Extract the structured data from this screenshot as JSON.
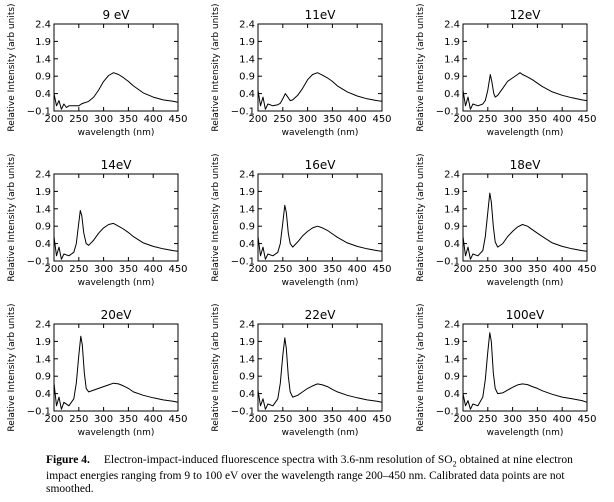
{
  "chart_data": [
    {
      "type": "line",
      "title": "9 eV",
      "xlabel": "wavelength (nm)",
      "ylabel": "Relative Intensity (arb units)",
      "xlim": [
        200,
        450
      ],
      "ylim": [
        -0.1,
        2.4
      ],
      "xticks": [
        "200",
        "250",
        "300",
        "350",
        "400",
        "450"
      ],
      "yticks": [
        "−0.1",
        "0.4",
        "0.9",
        "1.4",
        "1.9",
        "2.4"
      ],
      "series": [
        {
          "x": [
            200,
            205,
            210,
            215,
            220,
            225,
            230,
            240,
            250,
            255,
            260,
            265,
            270,
            280,
            290,
            300,
            310,
            320,
            330,
            340,
            350,
            360,
            380,
            400,
            420,
            440,
            450
          ],
          "y": [
            0.4,
            0.05,
            0.2,
            -0.05,
            0.1,
            0.0,
            0.05,
            0.05,
            0.05,
            0.1,
            0.13,
            0.15,
            0.18,
            0.3,
            0.5,
            0.75,
            0.92,
            1.0,
            0.95,
            0.86,
            0.75,
            0.62,
            0.42,
            0.3,
            0.22,
            0.18,
            0.15
          ]
        }
      ]
    },
    {
      "type": "line",
      "title": "11eV",
      "xlabel": "wavelength (nm)",
      "ylabel": "Relative Intensity (arb units)",
      "xlim": [
        200,
        450
      ],
      "ylim": [
        -0.1,
        2.4
      ],
      "xticks": [
        "200",
        "250",
        "300",
        "350",
        "400",
        "450"
      ],
      "yticks": [
        "−0.1",
        "0.4",
        "0.9",
        "1.4",
        "1.9",
        "2.4"
      ],
      "series": [
        {
          "x": [
            200,
            205,
            210,
            215,
            220,
            230,
            240,
            245,
            250,
            255,
            260,
            265,
            270,
            280,
            290,
            300,
            310,
            320,
            330,
            340,
            350,
            360,
            380,
            400,
            420,
            440,
            450
          ],
          "y": [
            0.5,
            0.05,
            0.3,
            -0.05,
            0.1,
            0.05,
            0.08,
            0.12,
            0.25,
            0.4,
            0.3,
            0.2,
            0.22,
            0.35,
            0.55,
            0.8,
            0.95,
            1.0,
            0.93,
            0.85,
            0.75,
            0.62,
            0.45,
            0.33,
            0.25,
            0.2,
            0.18
          ]
        }
      ]
    },
    {
      "type": "line",
      "title": "12eV",
      "xlabel": "wavelength (nm)",
      "ylabel": "Relative Intensity (arb units)",
      "xlim": [
        200,
        450
      ],
      "ylim": [
        -0.1,
        2.4
      ],
      "xticks": [
        "200",
        "250",
        "300",
        "350",
        "400",
        "450"
      ],
      "yticks": [
        "−0.1",
        "0.4",
        "0.9",
        "1.4",
        "1.9",
        "2.4"
      ],
      "series": [
        {
          "x": [
            200,
            205,
            210,
            215,
            220,
            230,
            240,
            245,
            250,
            255,
            258,
            262,
            265,
            270,
            280,
            290,
            300,
            310,
            315,
            320,
            330,
            340,
            350,
            360,
            380,
            400,
            420,
            440,
            450
          ],
          "y": [
            0.5,
            0.05,
            0.3,
            -0.05,
            0.1,
            0.05,
            0.1,
            0.2,
            0.5,
            0.95,
            0.75,
            0.4,
            0.3,
            0.35,
            0.55,
            0.75,
            0.85,
            0.95,
            1.0,
            0.95,
            0.88,
            0.8,
            0.7,
            0.6,
            0.45,
            0.35,
            0.28,
            0.22,
            0.2
          ]
        }
      ]
    },
    {
      "type": "line",
      "title": "14eV",
      "xlabel": "wavelength (nm)",
      "ylabel": "Relative Intensity (arb units)",
      "xlim": [
        200,
        450
      ],
      "ylim": [
        -0.1,
        2.4
      ],
      "xticks": [
        "200",
        "250",
        "300",
        "350",
        "400",
        "450"
      ],
      "yticks": [
        "−0.1",
        "0.4",
        "0.9",
        "1.4",
        "1.9",
        "2.4"
      ],
      "series": [
        {
          "x": [
            200,
            205,
            210,
            215,
            220,
            230,
            240,
            245,
            250,
            253,
            256,
            260,
            265,
            270,
            280,
            290,
            300,
            310,
            320,
            330,
            340,
            350,
            360,
            380,
            400,
            420,
            440,
            450
          ],
          "y": [
            0.6,
            0.05,
            0.3,
            -0.05,
            0.1,
            0.05,
            0.15,
            0.4,
            1.0,
            1.35,
            1.2,
            0.7,
            0.4,
            0.35,
            0.5,
            0.7,
            0.85,
            0.95,
            0.98,
            0.9,
            0.82,
            0.72,
            0.6,
            0.42,
            0.32,
            0.25,
            0.2,
            0.18
          ]
        }
      ]
    },
    {
      "type": "line",
      "title": "16eV",
      "xlabel": "wavelength (nm)",
      "ylabel": "Relative Intensity (arb units)",
      "xlim": [
        200,
        450
      ],
      "ylim": [
        -0.1,
        2.4
      ],
      "xticks": [
        "200",
        "250",
        "300",
        "350",
        "400",
        "450"
      ],
      "yticks": [
        "−0.1",
        "0.4",
        "0.9",
        "1.4",
        "1.9",
        "2.4"
      ],
      "series": [
        {
          "x": [
            200,
            205,
            210,
            215,
            220,
            230,
            240,
            245,
            250,
            254,
            257,
            261,
            265,
            270,
            280,
            290,
            300,
            310,
            320,
            330,
            340,
            350,
            360,
            380,
            400,
            420,
            440,
            450
          ],
          "y": [
            0.6,
            0.05,
            0.3,
            -0.05,
            0.1,
            0.05,
            0.15,
            0.4,
            1.0,
            1.5,
            1.3,
            0.7,
            0.4,
            0.3,
            0.45,
            0.62,
            0.75,
            0.85,
            0.9,
            0.85,
            0.78,
            0.68,
            0.58,
            0.42,
            0.32,
            0.25,
            0.2,
            0.18
          ]
        }
      ]
    },
    {
      "type": "line",
      "title": "18eV",
      "xlabel": "wavelength (nm)",
      "ylabel": "Relative Intensity (arb units)",
      "xlim": [
        200,
        450
      ],
      "ylim": [
        -0.1,
        2.4
      ],
      "xticks": [
        "200",
        "250",
        "300",
        "350",
        "400",
        "450"
      ],
      "yticks": [
        "−0.1",
        "0.4",
        "0.9",
        "1.4",
        "1.9",
        "2.4"
      ],
      "series": [
        {
          "x": [
            200,
            205,
            210,
            215,
            220,
            230,
            240,
            245,
            250,
            254,
            257,
            261,
            265,
            270,
            280,
            290,
            300,
            310,
            320,
            330,
            340,
            350,
            360,
            380,
            400,
            420,
            440,
            450
          ],
          "y": [
            0.6,
            0.05,
            0.3,
            -0.05,
            0.1,
            0.05,
            0.2,
            0.6,
            1.3,
            1.85,
            1.6,
            0.9,
            0.45,
            0.3,
            0.4,
            0.6,
            0.75,
            0.88,
            0.95,
            0.9,
            0.8,
            0.7,
            0.6,
            0.42,
            0.32,
            0.25,
            0.2,
            0.18
          ]
        }
      ]
    },
    {
      "type": "line",
      "title": "20eV",
      "xlabel": "wavelength (nm)",
      "ylabel": "Relative Intensity (arb units)",
      "xlim": [
        200,
        450
      ],
      "ylim": [
        -0.1,
        2.4
      ],
      "xticks": [
        "200",
        "250",
        "300",
        "350",
        "400",
        "450"
      ],
      "yticks": [
        "−0.1",
        "0.4",
        "0.9",
        "1.4",
        "1.9",
        "2.4"
      ],
      "series": [
        {
          "x": [
            200,
            205,
            210,
            215,
            220,
            230,
            240,
            245,
            250,
            254,
            257,
            261,
            265,
            270,
            280,
            290,
            300,
            310,
            320,
            330,
            340,
            350,
            360,
            380,
            400,
            420,
            440,
            450
          ],
          "y": [
            0.7,
            0.05,
            0.3,
            -0.05,
            0.15,
            0.05,
            0.25,
            0.7,
            1.5,
            2.05,
            1.8,
            1.0,
            0.55,
            0.45,
            0.5,
            0.55,
            0.6,
            0.65,
            0.7,
            0.68,
            0.62,
            0.55,
            0.45,
            0.35,
            0.28,
            0.22,
            0.18,
            0.15
          ]
        }
      ]
    },
    {
      "type": "line",
      "title": "22eV",
      "xlabel": "wavelength (nm)",
      "ylabel": "Relative Intensity (arb units)",
      "xlim": [
        200,
        450
      ],
      "ylim": [
        -0.1,
        2.4
      ],
      "xticks": [
        "200",
        "250",
        "300",
        "350",
        "400",
        "450"
      ],
      "yticks": [
        "−0.1",
        "0.4",
        "0.9",
        "1.4",
        "1.9",
        "2.4"
      ],
      "series": [
        {
          "x": [
            200,
            205,
            210,
            215,
            220,
            230,
            240,
            245,
            250,
            254,
            257,
            261,
            265,
            270,
            280,
            290,
            300,
            310,
            320,
            330,
            340,
            350,
            360,
            380,
            400,
            420,
            440,
            450
          ],
          "y": [
            0.5,
            0.05,
            0.25,
            -0.05,
            0.1,
            0.05,
            0.25,
            0.7,
            1.5,
            2.0,
            1.7,
            0.9,
            0.45,
            0.3,
            0.35,
            0.45,
            0.55,
            0.62,
            0.68,
            0.65,
            0.6,
            0.52,
            0.45,
            0.35,
            0.28,
            0.22,
            0.18,
            0.15
          ]
        }
      ]
    },
    {
      "type": "line",
      "title": "100eV",
      "xlabel": "wavelength (nm)",
      "ylabel": "Relative Intensity (arb units)",
      "xlim": [
        200,
        450
      ],
      "ylim": [
        -0.1,
        2.4
      ],
      "xticks": [
        "200",
        "250",
        "300",
        "350",
        "400",
        "450"
      ],
      "yticks": [
        "−0.1",
        "0.4",
        "0.9",
        "1.4",
        "1.9",
        "2.4"
      ],
      "series": [
        {
          "x": [
            200,
            205,
            210,
            215,
            220,
            230,
            240,
            245,
            250,
            254,
            257,
            261,
            265,
            270,
            280,
            290,
            300,
            310,
            320,
            330,
            340,
            350,
            360,
            380,
            400,
            420,
            440,
            450
          ],
          "y": [
            0.4,
            0.05,
            0.2,
            -0.05,
            0.1,
            0.05,
            0.3,
            0.8,
            1.6,
            2.15,
            1.9,
            1.0,
            0.55,
            0.4,
            0.42,
            0.5,
            0.58,
            0.65,
            0.68,
            0.66,
            0.6,
            0.55,
            0.48,
            0.38,
            0.3,
            0.25,
            0.2,
            0.15
          ]
        }
      ]
    }
  ],
  "caption": {
    "label": "Figure 4.",
    "text_line1": "Electron-impact-induced fluorescence spectra with 3.6-nm resolution of SO",
    "subscript": "2",
    "text_line1_end": " obtained at nine",
    "text_rest": "electron impact energies ranging from 9 to 100 eV over the wavelength range 200–450 nm. Calibrated data points are not smoothed."
  }
}
